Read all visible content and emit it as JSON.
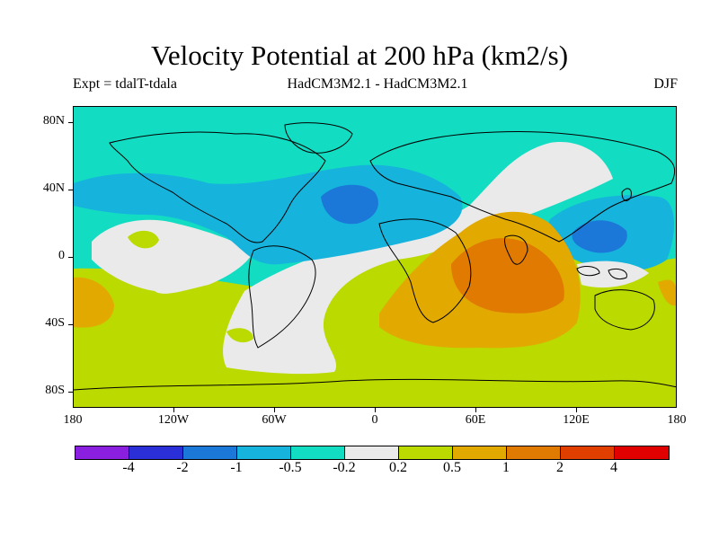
{
  "title": "Velocity Potential at 200 hPa (km2/s)",
  "subtitle_left": "Expt = tdalT-tdala",
  "subtitle_center": "HadCM3M2.1 - HadCM3M2.1",
  "subtitle_right": "DJF",
  "lat_labels": [
    "80N",
    "40N",
    "0",
    "40S",
    "80S"
  ],
  "lon_labels": [
    "180",
    "120W",
    "60W",
    "0",
    "60E",
    "120E",
    "180"
  ],
  "colorbar": {
    "colors": [
      "#8a1fe0",
      "#2b2fd8",
      "#1b78d8",
      "#16b4dd",
      "#12dcc2",
      "#eaeaea",
      "#bada00",
      "#e2aa00",
      "#e07a00",
      "#e03f00",
      "#e00000"
    ],
    "labels": [
      "-4",
      "-2",
      "-1",
      "-0.5",
      "-0.2",
      "0.2",
      "0.5",
      "1",
      "2",
      "4"
    ]
  },
  "map_colors": {
    "ocean_base": "#12dcc2",
    "light": "#16b4dd",
    "mid": "#1b78d8",
    "neutral": "#eaeaea",
    "yellow": "#bada00",
    "orange": "#e2aa00",
    "dark_orange": "#e07a00"
  }
}
